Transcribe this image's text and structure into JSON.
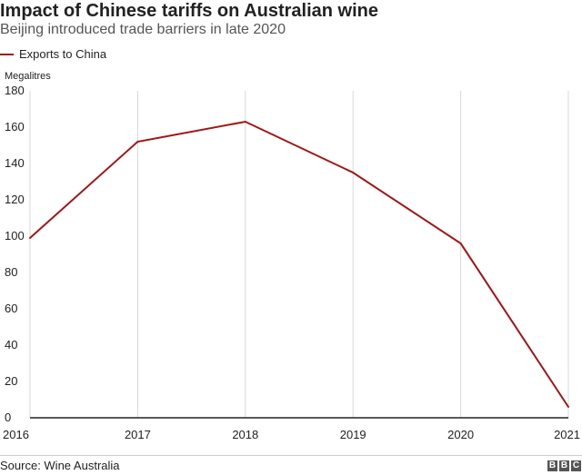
{
  "header": {
    "title": "Impact of Chinese tariffs on Australian wine",
    "subtitle": "Beijing introduced trade barriers in late 2020"
  },
  "legend": {
    "label": "Exports to China"
  },
  "units_label": "Megalitres",
  "footer": {
    "source": "Source: Wine Australia",
    "logo_letters": [
      "B",
      "B",
      "C"
    ]
  },
  "chart_data": {
    "type": "line",
    "title": "Impact of Chinese tariffs on Australian wine",
    "subtitle": "Beijing introduced trade barriers in late 2020",
    "xlabel": "",
    "ylabel": "Megalitres",
    "x": [
      2016,
      2017,
      2018,
      2019,
      2020,
      2021
    ],
    "series": [
      {
        "name": "Exports to China",
        "color": "#a01618",
        "values": [
          99,
          152,
          163,
          135,
          96,
          6
        ]
      }
    ],
    "ylim": [
      0,
      180
    ],
    "yticks": [
      0,
      20,
      40,
      60,
      80,
      100,
      120,
      140,
      160,
      180
    ],
    "grid": "vertical",
    "legend": "top-left"
  }
}
